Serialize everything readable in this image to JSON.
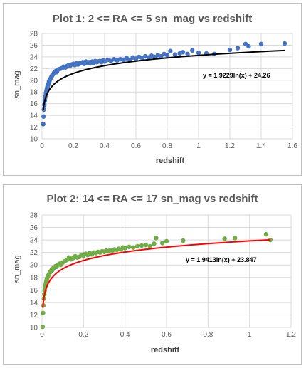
{
  "chart_data": [
    {
      "type": "scatter",
      "title": "Plot 1: 2 <= RA <= 5 sn_mag vs redshift",
      "xlabel": "redshift",
      "ylabel": "sn_mag",
      "xlim": [
        0,
        1.6
      ],
      "ylim": [
        10,
        28
      ],
      "xticks": [
        "0",
        "0.2",
        "0.4",
        "0.6",
        "0.8",
        "1",
        "1.2",
        "1.4",
        "1.6"
      ],
      "yticks": [
        "10",
        "12",
        "14",
        "16",
        "18",
        "20",
        "22",
        "24",
        "26",
        "28"
      ],
      "grid": true,
      "point_color": "#4472c4",
      "trend_color": "#000000",
      "trendline": {
        "type": "logarithmic",
        "a": 1.9229,
        "b": 24.26,
        "label": "y = 1.9229ln(x) + 24.26"
      },
      "series": [
        {
          "x": [
            0.008,
            0.01,
            0.012,
            0.015,
            0.018,
            0.02,
            0.022,
            0.025,
            0.028,
            0.03,
            0.033,
            0.035,
            0.038,
            0.04,
            0.043,
            0.045,
            0.048,
            0.05,
            0.055,
            0.06,
            0.065,
            0.07,
            0.075,
            0.08,
            0.085,
            0.09,
            0.095,
            0.1,
            0.11,
            0.12,
            0.13,
            0.14,
            0.15,
            0.16,
            0.17,
            0.18,
            0.19,
            0.2,
            0.21,
            0.22,
            0.23,
            0.24,
            0.25,
            0.26,
            0.27,
            0.28,
            0.29,
            0.3,
            0.31,
            0.32,
            0.33,
            0.34,
            0.35,
            0.36,
            0.37,
            0.38,
            0.39,
            0.4,
            0.42,
            0.44,
            0.46,
            0.48,
            0.5,
            0.52,
            0.54,
            0.56,
            0.58,
            0.6,
            0.62,
            0.64,
            0.66,
            0.68,
            0.7,
            0.72,
            0.74,
            0.76,
            0.78,
            0.8,
            0.82,
            0.85,
            0.88,
            0.9,
            0.93,
            0.96,
            1.0,
            1.05,
            1.1,
            1.2,
            1.25,
            1.3,
            1.32,
            1.4,
            1.55
          ],
          "y": [
            12.5,
            13.8,
            15.0,
            15.8,
            16.5,
            17.0,
            17.3,
            17.8,
            18.1,
            18.4,
            18.7,
            18.9,
            19.1,
            19.3,
            19.5,
            19.8,
            19.9,
            20.1,
            20.3,
            20.6,
            20.8,
            21.0,
            21.2,
            21.2,
            21.5,
            21.6,
            21.4,
            21.8,
            21.9,
            22.0,
            22.1,
            22.3,
            22.2,
            22.4,
            22.6,
            22.5,
            22.7,
            22.8,
            22.6,
            22.9,
            22.7,
            23.0,
            22.9,
            23.1,
            22.8,
            23.2,
            23.0,
            23.1,
            22.9,
            23.2,
            23.0,
            23.3,
            23.1,
            23.2,
            23.3,
            23.1,
            23.4,
            23.2,
            23.5,
            23.3,
            23.6,
            23.4,
            23.6,
            23.5,
            23.8,
            23.5,
            23.9,
            23.7,
            24.0,
            23.8,
            24.1,
            23.9,
            24.2,
            24.0,
            24.3,
            24.1,
            24.5,
            24.3,
            25.0,
            24.4,
            24.6,
            24.8,
            24.5,
            25.1,
            24.7,
            24.6,
            24.5,
            25.2,
            25.5,
            26.2,
            25.8,
            26.2,
            26.3
          ]
        }
      ]
    },
    {
      "type": "scatter",
      "title": "Plot 2: 14 <= RA <= 17 sn_mag vs redshift",
      "xlabel": "redshift",
      "ylabel": "sn_mag",
      "xlim": [
        0,
        1.2
      ],
      "ylim": [
        10,
        28
      ],
      "xticks": [
        "0",
        "0.2",
        "0.4",
        "0.6",
        "0.8",
        "1",
        "1.2"
      ],
      "yticks": [
        "10",
        "12",
        "14",
        "16",
        "18",
        "20",
        "22",
        "24",
        "26",
        "28"
      ],
      "grid": true,
      "point_color": "#70ad47",
      "trend_color": "#ff0000",
      "trendline": {
        "type": "logarithmic",
        "a": 1.9413,
        "b": 23.847,
        "label": "y = 1.9413ln(x) + 23.847"
      },
      "series": [
        {
          "x": [
            0.003,
            0.005,
            0.007,
            0.009,
            0.011,
            0.013,
            0.015,
            0.017,
            0.019,
            0.021,
            0.023,
            0.025,
            0.028,
            0.03,
            0.033,
            0.035,
            0.038,
            0.04,
            0.043,
            0.045,
            0.048,
            0.05,
            0.055,
            0.06,
            0.065,
            0.07,
            0.075,
            0.08,
            0.085,
            0.09,
            0.095,
            0.1,
            0.11,
            0.12,
            0.13,
            0.14,
            0.15,
            0.16,
            0.17,
            0.18,
            0.19,
            0.2,
            0.21,
            0.22,
            0.23,
            0.24,
            0.25,
            0.26,
            0.27,
            0.28,
            0.29,
            0.3,
            0.31,
            0.32,
            0.33,
            0.34,
            0.35,
            0.36,
            0.37,
            0.38,
            0.39,
            0.4,
            0.42,
            0.44,
            0.46,
            0.48,
            0.5,
            0.52,
            0.54,
            0.55,
            0.58,
            0.6,
            0.68,
            0.88,
            0.93,
            1.08,
            1.1
          ],
          "y": [
            10.1,
            12.3,
            13.5,
            14.6,
            15.3,
            15.9,
            16.4,
            16.8,
            17.1,
            17.4,
            17.7,
            17.9,
            18.1,
            18.3,
            18.5,
            18.6,
            18.8,
            18.9,
            19.0,
            19.1,
            19.3,
            19.2,
            19.5,
            19.6,
            19.8,
            19.7,
            20.0,
            20.1,
            20.2,
            20.0,
            20.3,
            20.4,
            20.6,
            20.8,
            21.2,
            20.9,
            21.1,
            21.4,
            21.2,
            21.3,
            21.6,
            21.5,
            21.8,
            21.6,
            21.9,
            21.7,
            22.0,
            21.9,
            22.1,
            22.0,
            22.2,
            22.1,
            22.3,
            22.2,
            22.4,
            22.3,
            22.5,
            22.4,
            22.6,
            22.5,
            22.8,
            22.7,
            22.9,
            22.8,
            23.0,
            23.1,
            23.2,
            23.0,
            23.4,
            24.3,
            23.5,
            23.8,
            23.9,
            24.2,
            24.3,
            24.9,
            24.0
          ]
        }
      ]
    }
  ]
}
